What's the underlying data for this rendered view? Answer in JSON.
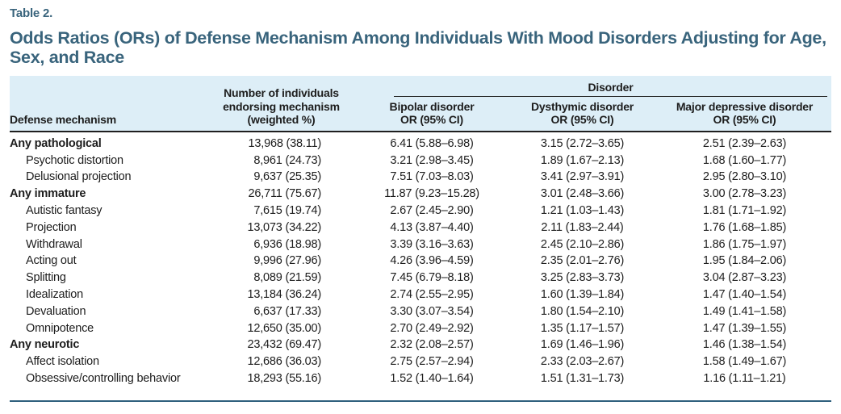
{
  "page": {
    "table_label": "Table 2.",
    "title": "Odds Ratios (ORs) of Defense Mechanism Among Individuals With Mood Disorders Adjusting for Age, Sex, and Race"
  },
  "table": {
    "header": {
      "mechanism": "Defense mechanism",
      "count_lines": [
        "Number of individuals",
        "endorsing mechanism",
        "(weighted %)"
      ],
      "group": "Disorder",
      "bipolar_lines": [
        "Bipolar disorder",
        "OR (95% CI)"
      ],
      "dysthymic_lines": [
        "Dysthymic disorder",
        "OR (95% CI)"
      ],
      "mdd_lines": [
        "Major depressive disorder",
        "OR (95% CI)"
      ]
    },
    "rows": [
      {
        "level": "group",
        "mechanism": "Any pathological",
        "count": "13,968 (38.11)",
        "bipolar": "6.41 (5.88–6.98)",
        "dysthymic": "3.15 (2.72–3.65)",
        "mdd": "2.51 (2.39–2.63)"
      },
      {
        "level": "sub",
        "mechanism": "Psychotic distortion",
        "count": "8,961 (24.73)",
        "bipolar": "3.21 (2.98–3.45)",
        "dysthymic": "1.89 (1.67–2.13)",
        "mdd": "1.68 (1.60–1.77)"
      },
      {
        "level": "sub",
        "mechanism": "Delusional projection",
        "count": "9,637 (25.35)",
        "bipolar": "7.51 (7.03–8.03)",
        "dysthymic": "3.41 (2.97–3.91)",
        "mdd": "2.95 (2.80–3.10)"
      },
      {
        "level": "group",
        "mechanism": "Any immature",
        "count": "26,711 (75.67)",
        "bipolar": "11.87 (9.23–15.28)",
        "dysthymic": "3.01 (2.48–3.66)",
        "mdd": "3.00 (2.78–3.23)"
      },
      {
        "level": "sub",
        "mechanism": "Autistic fantasy",
        "count": "7,615 (19.74)",
        "bipolar": "2.67 (2.45–2.90)",
        "dysthymic": "1.21 (1.03–1.43)",
        "mdd": "1.81 (1.71–1.92)"
      },
      {
        "level": "sub",
        "mechanism": "Projection",
        "count": "13,073 (34.22)",
        "bipolar": "4.13 (3.87–4.40)",
        "dysthymic": "2.11 (1.83–2.44)",
        "mdd": "1.76 (1.68–1.85)"
      },
      {
        "level": "sub",
        "mechanism": "Withdrawal",
        "count": "6,936 (18.98)",
        "bipolar": "3.39 (3.16–3.63)",
        "dysthymic": "2.45 (2.10–2.86)",
        "mdd": "1.86 (1.75–1.97)"
      },
      {
        "level": "sub",
        "mechanism": "Acting out",
        "count": "9,996 (27.96)",
        "bipolar": "4.26 (3.96–4.59)",
        "dysthymic": "2.35 (2.01–2.76)",
        "mdd": "1.95 (1.84–2.06)"
      },
      {
        "level": "sub",
        "mechanism": "Splitting",
        "count": "8,089 (21.59)",
        "bipolar": "7.45 (6.79–8.18)",
        "dysthymic": "3.25 (2.83–3.73)",
        "mdd": "3.04 (2.87–3.23)"
      },
      {
        "level": "sub",
        "mechanism": "Idealization",
        "count": "13,184 (36.24)",
        "bipolar": "2.74 (2.55–2.95)",
        "dysthymic": "1.60 (1.39–1.84)",
        "mdd": "1.47 (1.40–1.54)"
      },
      {
        "level": "sub",
        "mechanism": "Devaluation",
        "count": "6,637 (17.33)",
        "bipolar": "3.30 (3.07–3.54)",
        "dysthymic": "1.80 (1.54–2.10)",
        "mdd": "1.49 (1.41–1.58)"
      },
      {
        "level": "sub",
        "mechanism": "Omnipotence",
        "count": "12,650 (35.00)",
        "bipolar": "2.70 (2.49–2.92)",
        "dysthymic": "1.35 (1.17–1.57)",
        "mdd": "1.47 (1.39–1.55)"
      },
      {
        "level": "group",
        "mechanism": "Any neurotic",
        "count": "23,432 (69.47)",
        "bipolar": "2.32 (2.08–2.57)",
        "dysthymic": "1.69 (1.46–1.96)",
        "mdd": "1.46 (1.38–1.54)"
      },
      {
        "level": "sub",
        "mechanism": "Affect isolation",
        "count": "12,686 (36.03)",
        "bipolar": "2.75 (2.57–2.94)",
        "dysthymic": "2.33 (2.03–2.67)",
        "mdd": "1.58 (1.49–1.67)"
      },
      {
        "level": "sub",
        "mechanism": "Obsessive/controlling behavior",
        "count": "18,293 (55.16)",
        "bipolar": "1.52 (1.40–1.64)",
        "dysthymic": "1.51 (1.31–1.73)",
        "mdd": "1.16 (1.11–1.21)"
      }
    ]
  },
  "colors": {
    "accent_title": "#39647c",
    "header_band": "#ddeef7",
    "header_rule": "#1f1f1f",
    "bottom_rule": "#2e5f7d",
    "body_text": "#1d1d1d"
  }
}
